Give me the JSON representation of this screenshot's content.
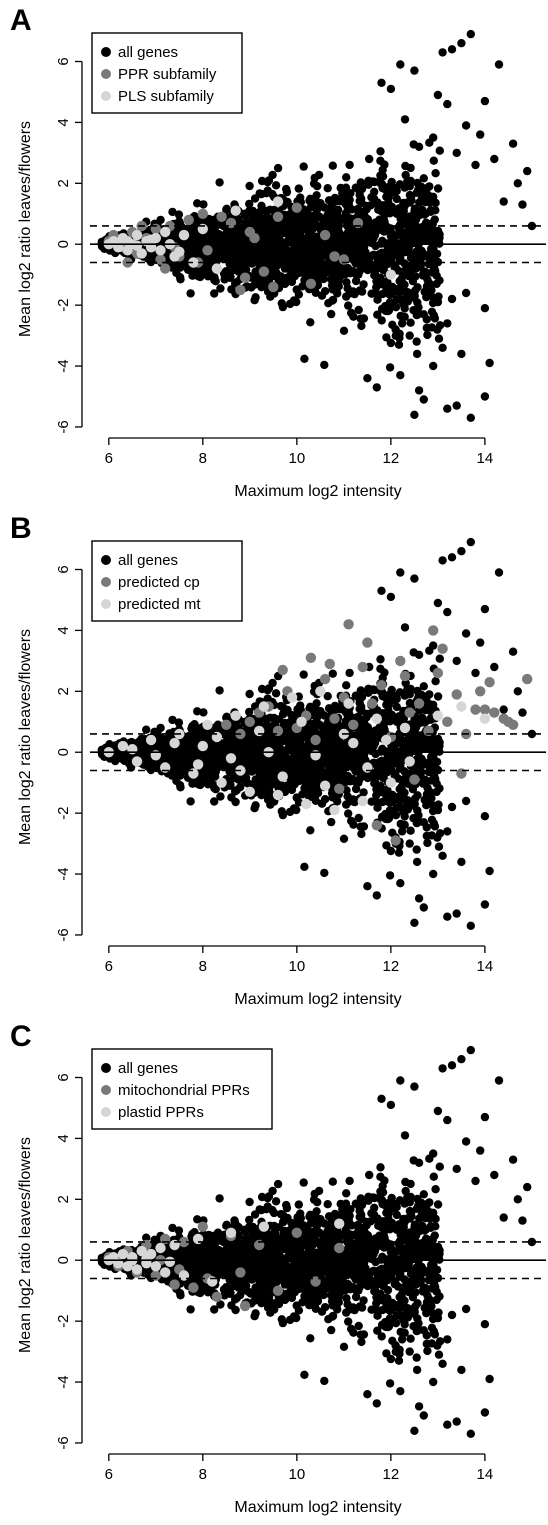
{
  "figure": {
    "panels": [
      {
        "letter": "A",
        "legend": [
          {
            "label": "all genes",
            "color": "#000000"
          },
          {
            "label": "PPR subfamily",
            "color": "#7a7a7a"
          },
          {
            "label": "PLS subfamily",
            "color": "#d6d6d6"
          }
        ]
      },
      {
        "letter": "B",
        "legend": [
          {
            "label": "all genes",
            "color": "#000000"
          },
          {
            "label": "predicted cp",
            "color": "#7a7a7a"
          },
          {
            "label": "predicted mt",
            "color": "#d6d6d6"
          }
        ]
      },
      {
        "letter": "C",
        "legend": [
          {
            "label": "all genes",
            "color": "#000000"
          },
          {
            "label": "mitochondrial PPRs",
            "color": "#7a7a7a"
          },
          {
            "label": "plastid PPRs",
            "color": "#d6d6d6"
          }
        ]
      }
    ]
  },
  "chart_data": [
    {
      "type": "scatter",
      "panel": "A",
      "xlabel": "Maximum log2 intensity",
      "ylabel": "Mean log2 ratio leaves/flowers",
      "xlim": [
        5.6,
        15.3
      ],
      "ylim": [
        -6.1,
        7.1
      ],
      "xticks": [
        6,
        8,
        10,
        12,
        14
      ],
      "yticks": [
        -6,
        -4,
        -2,
        0,
        2,
        4,
        6
      ],
      "hlines": [
        {
          "y": 0,
          "style": "solid"
        },
        {
          "y": 0.6,
          "style": "dashed"
        },
        {
          "y": -0.6,
          "style": "dashed"
        }
      ],
      "legend_position": "top-left",
      "grid": false,
      "series": [
        {
          "name": "all genes",
          "color": "#000000",
          "x": [
            13.7,
            13.5,
            13.3,
            13.1,
            12.2,
            12.5,
            14.3,
            14.6,
            14.9,
            13.0,
            13.2,
            14.0,
            13.6,
            14.2,
            14.7,
            11.8,
            12.0,
            12.9,
            13.4,
            13.9,
            14.4,
            12.3,
            12.6,
            14.8,
            15.0,
            13.8,
            12.8,
            11.9,
            13.0,
            12.7,
            12.1,
            13.3,
            13.6,
            14.0,
            13.2,
            12.4,
            13.1,
            14.1,
            12.2,
            12.9,
            13.5,
            12.6,
            12.7,
            13.2,
            14.0,
            13.4,
            11.5,
            11.7,
            12.5,
            13.7
          ],
          "y": [
            6.9,
            6.6,
            6.4,
            6.3,
            5.9,
            5.7,
            5.9,
            3.3,
            2.4,
            4.9,
            4.6,
            4.7,
            3.9,
            2.8,
            2.0,
            5.3,
            5.1,
            3.5,
            3.0,
            3.6,
            1.4,
            4.1,
            3.2,
            1.3,
            0.6,
            2.6,
            1.6,
            -1.6,
            -1.9,
            -2.3,
            -2.8,
            -1.8,
            -1.6,
            -2.1,
            -2.6,
            -3.0,
            -3.4,
            -3.9,
            -4.3,
            -4.0,
            -3.6,
            -4.8,
            -5.1,
            -5.4,
            -5.0,
            -5.3,
            -4.4,
            -4.7,
            -5.6,
            -5.7
          ]
        },
        {
          "name": "PPR subfamily",
          "color": "#7a7a7a",
          "x": [
            6.0,
            6.1,
            6.3,
            6.5,
            6.6,
            6.8,
            7.0,
            7.1,
            7.3,
            7.5,
            7.7,
            7.9,
            8.0,
            8.3,
            8.6,
            8.9,
            9.0,
            9.3,
            9.6,
            10.0,
            10.3,
            10.6,
            11.0,
            11.3,
            6.4,
            6.7,
            7.2,
            7.6,
            8.1,
            8.8,
            9.5,
            10.8,
            7.4,
            6.9,
            8.4,
            9.1
          ],
          "y": [
            0.1,
            0.3,
            -0.1,
            0.4,
            -0.3,
            0.2,
            0.5,
            -0.5,
            0.6,
            -0.4,
            0.8,
            -0.6,
            1.0,
            -0.8,
            0.7,
            -1.1,
            0.4,
            -0.9,
            0.9,
            1.2,
            -1.3,
            0.3,
            -0.5,
            0.7,
            -0.6,
            0.6,
            -0.8,
            0.3,
            -0.2,
            -1.5,
            -1.4,
            -0.4,
            -0.1,
            0.0,
            0.9,
            0.2
          ]
        },
        {
          "name": "PLS subfamily",
          "color": "#d6d6d6",
          "x": [
            6.0,
            6.1,
            6.2,
            6.3,
            6.4,
            6.5,
            6.6,
            6.7,
            6.8,
            6.9,
            7.0,
            7.1,
            7.2,
            7.4,
            7.6,
            7.8,
            8.0,
            8.3,
            8.7,
            9.6,
            12.0,
            7.3,
            6.6,
            6.9,
            7.5,
            6.2,
            6.4
          ],
          "y": [
            0.0,
            0.1,
            -0.1,
            0.2,
            -0.2,
            0.0,
            0.3,
            -0.3,
            0.1,
            -0.1,
            0.2,
            -0.2,
            0.4,
            -0.4,
            0.3,
            -0.6,
            0.5,
            -0.8,
            1.1,
            1.4,
            -1.0,
            0.0,
            -0.05,
            0.15,
            -0.25,
            0.05,
            0.1
          ]
        }
      ]
    },
    {
      "type": "scatter",
      "panel": "B",
      "xlabel": "Maximum log2 intensity",
      "ylabel": "Mean log2 ratio leaves/flowers",
      "xlim": [
        5.6,
        15.3
      ],
      "ylim": [
        -6.1,
        7.1
      ],
      "xticks": [
        6,
        8,
        10,
        12,
        14
      ],
      "yticks": [
        -6,
        -4,
        -2,
        0,
        2,
        4,
        6
      ],
      "hlines": [
        {
          "y": 0,
          "style": "solid"
        },
        {
          "y": 0.6,
          "style": "dashed"
        },
        {
          "y": -0.6,
          "style": "dashed"
        }
      ],
      "legend_position": "top-left",
      "grid": false,
      "series": [
        {
          "name": "all genes",
          "color": "#000000",
          "x": [
            13.7,
            13.5,
            13.3,
            13.1,
            12.2,
            12.5,
            14.3,
            14.6,
            14.9,
            13.0,
            13.2,
            14.0,
            13.6,
            14.2,
            14.7,
            11.8,
            12.0,
            12.9,
            13.4,
            13.9,
            14.4,
            12.3,
            12.6,
            14.8,
            15.0,
            13.8,
            12.8,
            11.9,
            13.0,
            12.7,
            12.1,
            13.3,
            13.6,
            14.0,
            13.2,
            12.4,
            13.1,
            14.1,
            12.2,
            12.9,
            13.5,
            12.6,
            12.7,
            13.2,
            14.0,
            13.4,
            11.5,
            11.7,
            12.5,
            13.7
          ],
          "y": [
            6.9,
            6.6,
            6.4,
            6.3,
            5.9,
            5.7,
            5.9,
            3.3,
            2.4,
            4.9,
            4.6,
            4.7,
            3.9,
            2.8,
            2.0,
            5.3,
            5.1,
            3.5,
            3.0,
            3.6,
            1.4,
            4.1,
            3.2,
            1.3,
            0.6,
            2.6,
            1.6,
            -1.6,
            -1.9,
            -2.3,
            -2.8,
            -1.8,
            -1.6,
            -2.1,
            -2.6,
            -3.0,
            -3.4,
            -3.9,
            -4.3,
            -4.0,
            -3.6,
            -4.8,
            -5.1,
            -5.4,
            -5.0,
            -5.3,
            -4.4,
            -4.7,
            -5.6,
            -5.7
          ]
        },
        {
          "name": "predicted cp",
          "color": "#7a7a7a",
          "x": [
            9.0,
            9.4,
            9.8,
            10.2,
            10.6,
            11.0,
            11.4,
            11.8,
            12.2,
            12.6,
            13.0,
            13.4,
            13.8,
            14.2,
            14.5,
            14.9,
            10.0,
            10.8,
            11.6,
            12.4,
            13.2,
            14.0,
            9.6,
            10.4,
            11.2,
            12.0,
            12.8,
            13.6,
            14.4,
            8.5,
            8.8,
            9.2,
            10.7,
            11.5,
            12.3,
            13.1,
            13.9,
            14.1,
            12.9,
            11.1,
            10.3,
            9.7,
            12.5,
            13.5,
            14.6,
            10.9,
            11.7,
            12.1
          ],
          "y": [
            1.0,
            1.5,
            2.0,
            1.2,
            2.4,
            1.8,
            2.8,
            2.2,
            3.0,
            1.6,
            2.6,
            1.9,
            1.4,
            1.3,
            1.0,
            2.4,
            0.8,
            1.1,
            1.6,
            1.3,
            1.0,
            1.4,
            0.7,
            0.4,
            0.9,
            0.5,
            0.7,
            0.6,
            1.1,
            0.9,
            0.6,
            1.3,
            2.9,
            3.6,
            2.5,
            3.4,
            2.0,
            2.3,
            4.0,
            4.2,
            3.1,
            2.7,
            -0.9,
            -0.7,
            0.9,
            -1.2,
            -2.4,
            -2.9
          ]
        },
        {
          "name": "predicted mt",
          "color": "#d6d6d6",
          "x": [
            6.0,
            6.3,
            6.6,
            6.9,
            7.2,
            7.5,
            7.8,
            8.1,
            8.4,
            8.7,
            9.0,
            9.3,
            9.6,
            9.9,
            10.2,
            10.5,
            10.8,
            11.1,
            11.4,
            11.7,
            12.0,
            12.3,
            6.5,
            7.0,
            7.4,
            7.9,
            8.3,
            8.8,
            9.2,
            9.7,
            10.1,
            10.6,
            11.0,
            11.5,
            11.9,
            12.4,
            13.0,
            13.5,
            14.0,
            8.0,
            8.6,
            9.4,
            10.4,
            11.2
          ],
          "y": [
            0.0,
            0.2,
            -0.3,
            0.4,
            -0.5,
            0.6,
            -0.7,
            0.9,
            -1.0,
            1.2,
            -1.3,
            1.5,
            -1.4,
            1.8,
            -1.7,
            2.0,
            -1.9,
            1.6,
            -1.6,
            1.1,
            -1.0,
            0.8,
            0.1,
            -0.1,
            0.3,
            -0.4,
            0.5,
            -0.6,
            0.7,
            -0.8,
            1.0,
            -1.1,
            0.6,
            -0.5,
            0.4,
            -0.3,
            1.2,
            1.5,
            1.1,
            0.2,
            -0.2,
            0.0,
            -0.1,
            0.3
          ]
        }
      ]
    },
    {
      "type": "scatter",
      "panel": "C",
      "xlabel": "Maximum log2 intensity",
      "ylabel": "Mean log2 ratio leaves/flowers",
      "xlim": [
        5.6,
        15.3
      ],
      "ylim": [
        -6.1,
        7.1
      ],
      "xticks": [
        6,
        8,
        10,
        12,
        14
      ],
      "yticks": [
        -6,
        -4,
        -2,
        0,
        2,
        4,
        6
      ],
      "hlines": [
        {
          "y": 0,
          "style": "solid"
        },
        {
          "y": 0.6,
          "style": "dashed"
        },
        {
          "y": -0.6,
          "style": "dashed"
        }
      ],
      "legend_position": "top-left",
      "grid": false,
      "series": [
        {
          "name": "all genes",
          "color": "#000000",
          "x": [
            13.7,
            13.5,
            13.3,
            13.1,
            12.2,
            12.5,
            14.3,
            14.6,
            14.9,
            13.0,
            13.2,
            14.0,
            13.6,
            14.2,
            14.7,
            11.8,
            12.0,
            12.9,
            13.4,
            13.9,
            14.4,
            12.3,
            12.6,
            14.8,
            15.0,
            13.8,
            12.8,
            11.9,
            13.0,
            12.7,
            12.1,
            13.3,
            13.6,
            14.0,
            13.2,
            12.4,
            13.1,
            14.1,
            12.2,
            12.9,
            13.5,
            12.6,
            12.7,
            13.2,
            14.0,
            13.4,
            11.5,
            11.7,
            12.5,
            13.7
          ],
          "y": [
            6.9,
            6.6,
            6.4,
            6.3,
            5.9,
            5.7,
            5.9,
            3.3,
            2.4,
            4.9,
            4.6,
            4.7,
            3.9,
            2.8,
            2.0,
            5.3,
            5.1,
            3.5,
            3.0,
            3.6,
            1.4,
            4.1,
            3.2,
            1.3,
            0.6,
            2.6,
            1.6,
            -1.6,
            -1.9,
            -2.3,
            -2.8,
            -1.8,
            -1.6,
            -2.1,
            -2.6,
            -3.0,
            -3.4,
            -3.9,
            -4.3,
            -4.0,
            -3.6,
            -4.8,
            -5.1,
            -5.4,
            -5.0,
            -5.3,
            -4.4,
            -4.7,
            -5.6,
            -5.7
          ]
        },
        {
          "name": "mitochondrial PPRs",
          "color": "#7a7a7a",
          "x": [
            6.0,
            6.2,
            6.4,
            6.6,
            6.8,
            7.0,
            7.2,
            7.4,
            7.6,
            7.8,
            8.0,
            8.3,
            8.6,
            8.9,
            9.2,
            9.6,
            10.0,
            10.4,
            10.9,
            7.1,
            6.9,
            7.5,
            8.1,
            8.8
          ],
          "y": [
            0.1,
            -0.2,
            0.3,
            -0.4,
            0.5,
            -0.5,
            0.7,
            -0.8,
            0.6,
            -0.9,
            1.1,
            -1.2,
            0.8,
            -1.5,
            0.5,
            -1.0,
            0.9,
            -0.7,
            0.4,
            0.0,
            0.2,
            -0.3,
            -0.6,
            -0.4
          ]
        },
        {
          "name": "plastid PPRs",
          "color": "#d6d6d6",
          "x": [
            6.0,
            6.1,
            6.2,
            6.3,
            6.4,
            6.5,
            6.6,
            6.7,
            6.8,
            6.9,
            7.0,
            7.1,
            7.2,
            7.4,
            7.6,
            7.9,
            8.2,
            8.6,
            9.3,
            10.9,
            6.5,
            6.8,
            7.3
          ],
          "y": [
            0.0,
            0.1,
            -0.1,
            0.2,
            -0.2,
            0.1,
            -0.3,
            0.3,
            -0.1,
            0.2,
            -0.2,
            0.4,
            -0.4,
            0.5,
            -0.5,
            0.7,
            -0.7,
            0.9,
            1.1,
            1.2,
            0.0,
            0.05,
            -0.05
          ]
        }
      ]
    }
  ]
}
